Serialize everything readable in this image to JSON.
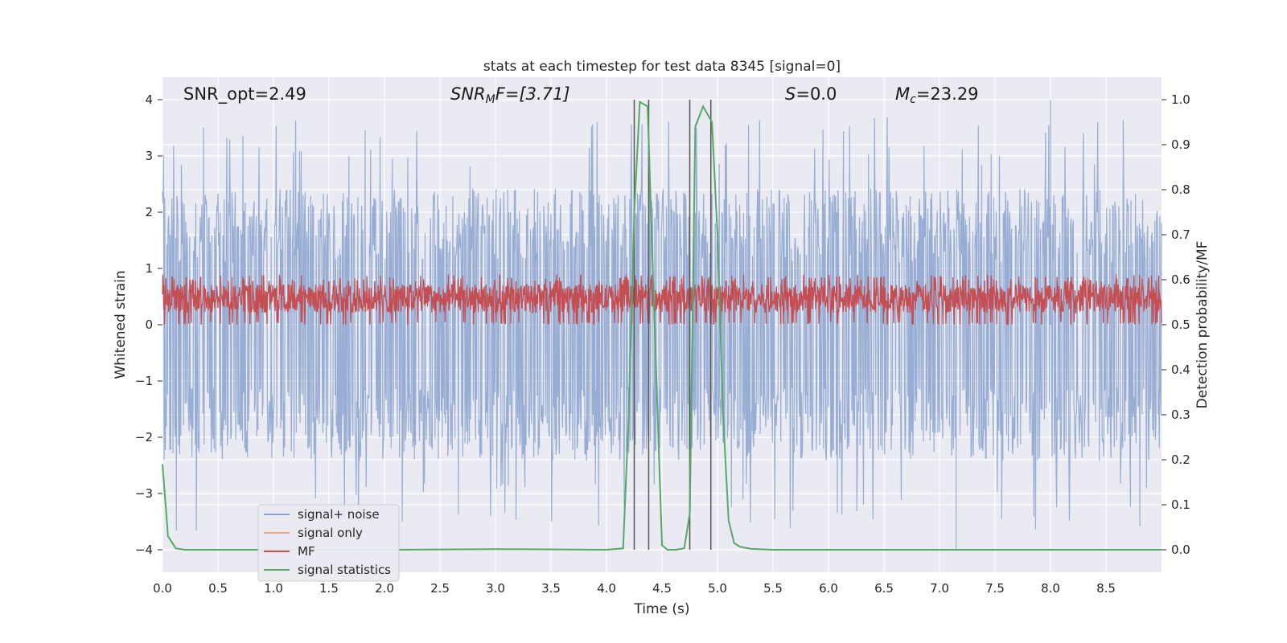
{
  "chart_data": {
    "type": "line",
    "title": "stats at each timestep for test data 8345 [signal=0]",
    "xlabel": "Time (s)",
    "ylabel": "Whitened strain",
    "ylabel_right": "Detection probability/MF",
    "xlim": [
      0.0,
      9.0
    ],
    "ylim": [
      -4.4,
      4.4
    ],
    "ylim_right": [
      -0.05,
      1.05
    ],
    "grid": true,
    "x_ticks": [
      "0.0",
      "0.5",
      "1.0",
      "1.5",
      "2.0",
      "2.5",
      "3.0",
      "3.5",
      "4.0",
      "4.5",
      "5.0",
      "5.5",
      "6.0",
      "6.5",
      "7.0",
      "7.5",
      "8.0",
      "8.5"
    ],
    "y_ticks": [
      "−4",
      "−3",
      "−2",
      "−1",
      "0",
      "1",
      "2",
      "3",
      "4"
    ],
    "y_ticks_right": [
      "0.0",
      "0.1",
      "0.2",
      "0.3",
      "0.4",
      "0.5",
      "0.6",
      "0.7",
      "0.8",
      "0.9",
      "1.0"
    ],
    "annotations": {
      "snr_opt": "SNR_opt=2.49",
      "snr_mf_main": "SNR",
      "snr_mf_sub": "M",
      "snr_mf_rest": "F=[3.71]",
      "s_main": "S",
      "s_rest": "=0.0",
      "mc_main": "M",
      "mc_sub": "c",
      "mc_rest": "=23.29"
    },
    "legend_position": "lower-left",
    "legend": [
      {
        "label": "signal+ noise",
        "color": "#8fa6d0"
      },
      {
        "label": "signal only",
        "color": "#e8a88a"
      },
      {
        "label": "MF",
        "color": "#c44e52"
      },
      {
        "label": "signal statistics",
        "color": "#55a868"
      }
    ],
    "series": [
      {
        "name": "signal+ noise",
        "axis": "left",
        "color": "#8fa6d0",
        "description": "whitened strain noise, approx range -4 to 4, density band",
        "envelope": {
          "upper_typical": 2.2,
          "lower_typical": -2.2,
          "upper_peak": 4.0,
          "lower_peak": -4.0
        },
        "notable_peaks": [
          {
            "x": 4.38,
            "y": 3.9
          },
          {
            "x": 8.0,
            "y": 4.0
          },
          {
            "x": 7.15,
            "y": -4.0
          }
        ]
      },
      {
        "name": "MF",
        "axis": "left",
        "color": "#c44e52",
        "description": "matched filter output band approx 0 to 0.9",
        "band": {
          "low": 0.0,
          "high": 0.85
        }
      },
      {
        "name": "signal statistics",
        "axis": "right",
        "color": "#55a868",
        "x": [
          0.0,
          0.05,
          0.12,
          0.2,
          0.5,
          1.0,
          2.0,
          3.0,
          4.0,
          4.15,
          4.2,
          4.25,
          4.3,
          4.37,
          4.42,
          4.5,
          4.55,
          4.62,
          4.7,
          4.75,
          4.8,
          4.87,
          4.95,
          5.0,
          5.05,
          5.1,
          5.15,
          5.2,
          5.3,
          5.5,
          6.0,
          7.0,
          8.0,
          9.0
        ],
        "values": [
          0.19,
          0.03,
          0.003,
          0.0,
          0.0,
          0.0,
          0.0,
          0.0015,
          0.0,
          0.003,
          0.3,
          0.75,
          0.995,
          0.985,
          0.6,
          0.01,
          0.0,
          0.0,
          0.003,
          0.08,
          0.94,
          0.985,
          0.95,
          0.7,
          0.3,
          0.065,
          0.015,
          0.007,
          0.002,
          0.0,
          0.0,
          0.0,
          0.0,
          0.0
        ]
      }
    ],
    "vertical_lines": [
      4.25,
      4.38,
      4.75,
      4.94
    ],
    "vertical_line_color": "#555555"
  }
}
